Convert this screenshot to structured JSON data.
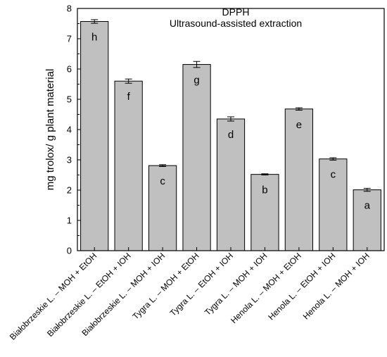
{
  "chart_data": {
    "type": "bar",
    "title": "DPPH",
    "subtitle": "Ultrasound-assisted extraction",
    "xlabel": "",
    "ylabel": "mg trolox/ g plant material",
    "ylim": [
      0,
      8
    ],
    "yticks": [
      "0",
      "1",
      "2",
      "3",
      "4",
      "5",
      "6",
      "7",
      "8"
    ],
    "grid": false,
    "bar_color": "#c0c0c0",
    "categories": [
      "Białobrzeskie L. – MOH + EtOH",
      "Białobrzeskie L. – EtOH + IOH",
      "Białobrzeskie L. – MOH + IOH",
      "Tygra L. – MOH + EtOH",
      "Tygra L. – EtOH + IOH",
      "Tygra L. – MOH + IOH",
      "Henola L. – MOH + EtOH",
      "Henola L. – EtOH + IOH",
      "Henola L. – MOH + IOH"
    ],
    "values": [
      7.57,
      5.6,
      2.81,
      6.15,
      4.35,
      2.52,
      4.68,
      3.03,
      2.01
    ],
    "errors": [
      0.06,
      0.07,
      0.03,
      0.1,
      0.07,
      0.02,
      0.04,
      0.04,
      0.05
    ],
    "letters": [
      "h",
      "f",
      "c",
      "g",
      "d",
      "b",
      "e",
      "c",
      "a"
    ]
  }
}
